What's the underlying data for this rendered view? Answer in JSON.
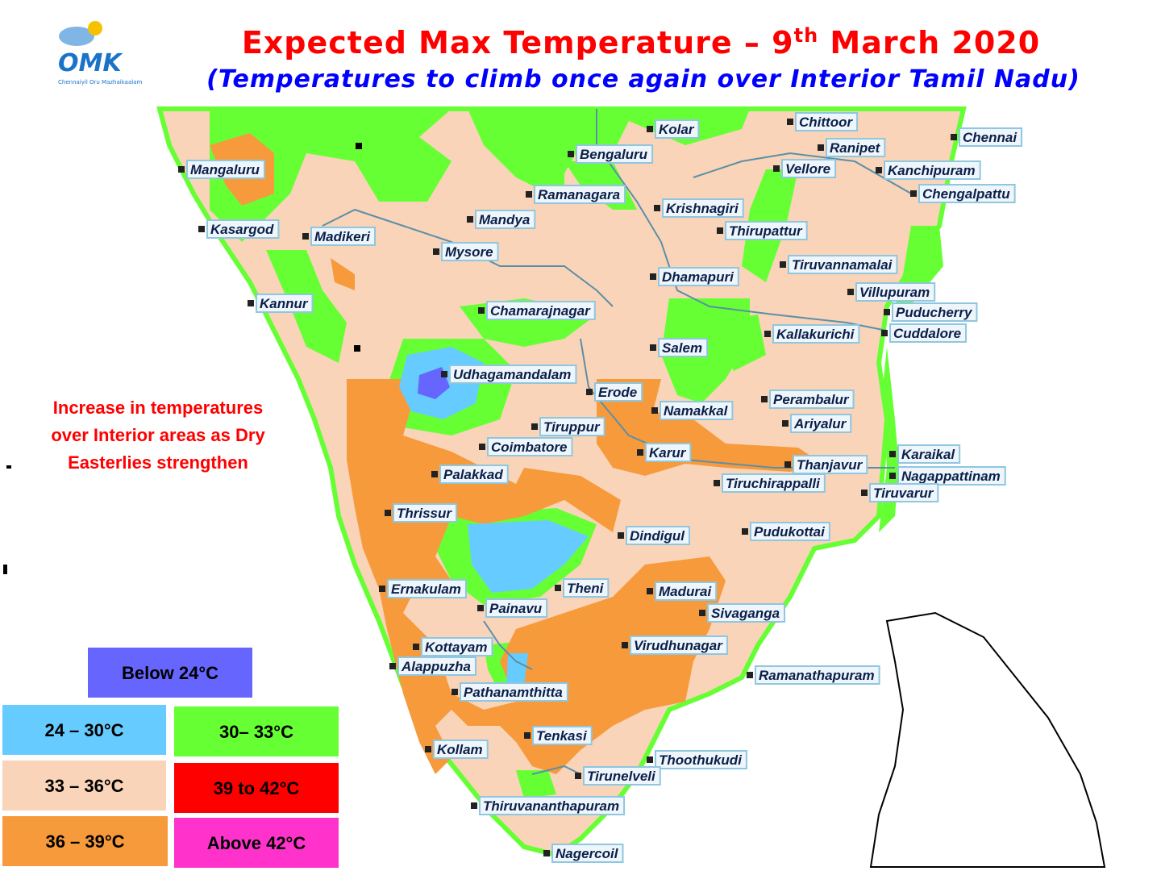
{
  "logo": {
    "text": "OMK",
    "tagline": "Chennaiyil Oru Mazhaikaalam"
  },
  "header": {
    "title_parts": [
      "Expected Max Temperature – 9",
      "th",
      " March 2020"
    ],
    "subtitle": "(Temperatures to climb once again over Interior Tamil Nadu)"
  },
  "annotation": {
    "lines": [
      "Increase in temperatures",
      "over Interior areas as Dry",
      "Easterlies strengthen"
    ]
  },
  "legend": [
    {
      "label": "Below 24°C",
      "color": "#6666ff"
    },
    {
      "label": "24 – 30°C",
      "color": "#66ccff"
    },
    {
      "label": "30– 33°C",
      "color": "#66ff33"
    },
    {
      "label": "33 – 36°C",
      "color": "#f9d4b8"
    },
    {
      "label": "39 to 42°C",
      "color": "#ff0000"
    },
    {
      "label": "36 – 39°C",
      "color": "#f79a3c"
    },
    {
      "label": "Above 42°C",
      "color": "#ff33cc"
    }
  ],
  "cities": [
    "Chittoor",
    "Chennai",
    "Kolar",
    "Bengaluru",
    "Ranipet",
    "Mangaluru",
    "Vellore",
    "Kanchipuram",
    "Ramanagara",
    "Chengalpattu",
    "Krishnagiri",
    "Mandya",
    "Kasargod",
    "Madikeri",
    "Thirupattur",
    "Mysore",
    "Tiruvannamalai",
    "Dhamapuri",
    "Villupuram",
    "Kannur",
    "Chamarajnagar",
    "Puducherry",
    "Kallakurichi",
    "Cuddalore",
    "Salem",
    "Udhagamandalam",
    "Erode",
    "Perambalur",
    "Namakkal",
    "Tiruppur",
    "Ariyalur",
    "Coimbatore",
    "Karur",
    "Karaikal",
    "Thanjavur",
    "Palakkad",
    "Nagappattinam",
    "Tiruchirappalli",
    "Tiruvarur",
    "Thrissur",
    "Pudukottai",
    "Dindigul",
    "Theni",
    "Ernakulam",
    "Madurai",
    "Painavu",
    "Sivaganga",
    "Kottayam",
    "Virudhunagar",
    "Alappuzha",
    "Ramanathapuram",
    "Pathanamthitta",
    "Tenkasi",
    "Kollam",
    "Thoothukudi",
    "Tirunelveli",
    "Thiruvananthapuram",
    "Nagercoil"
  ]
}
